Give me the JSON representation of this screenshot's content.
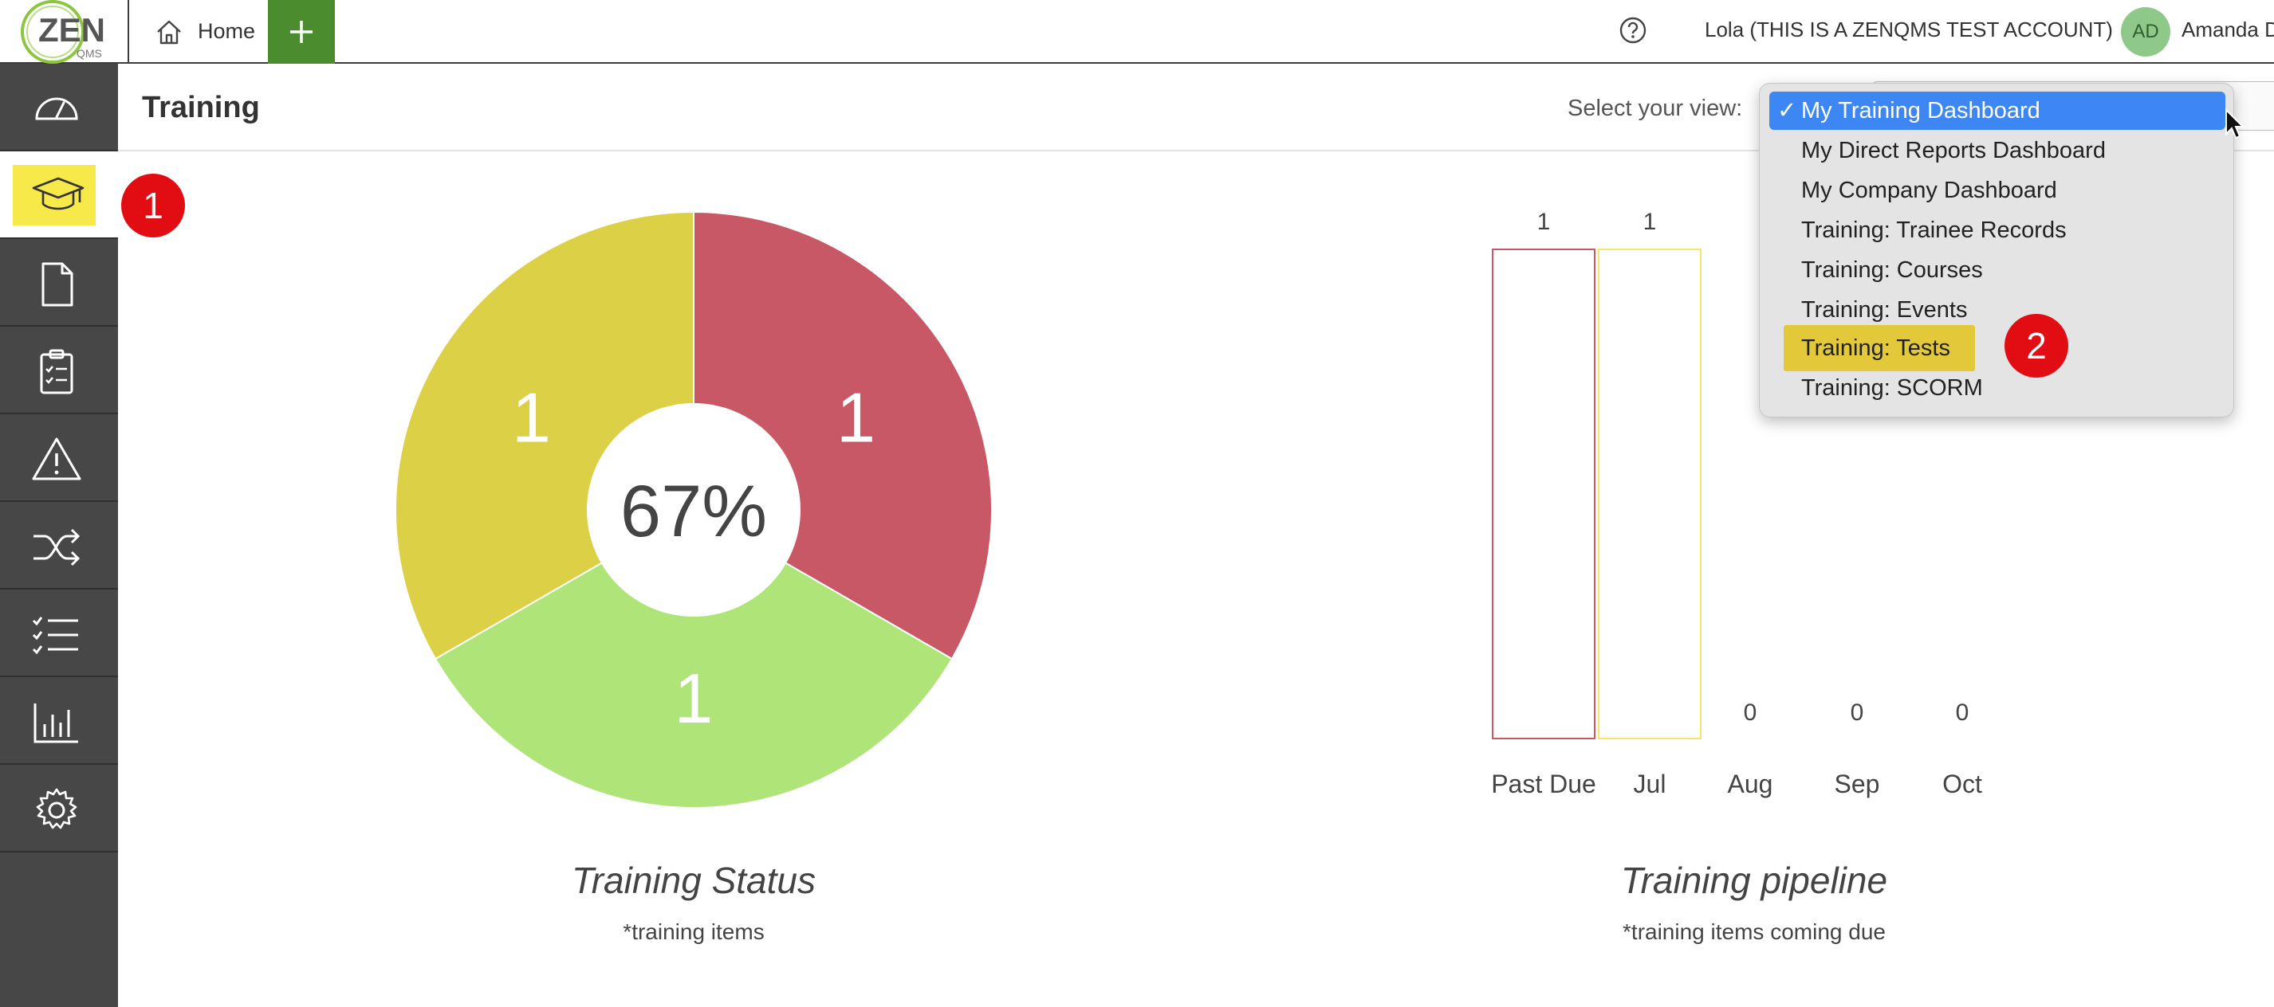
{
  "colors": {
    "sidebar_bg": "#474747",
    "accent_green": "#4a8c2e",
    "highlight_yellow": "#f7e94a",
    "badge_red": "#e20d12",
    "select_blue": "#3d87f5",
    "status_red": "#c95866",
    "status_yellow": "#dcd046",
    "status_green": "#afe478"
  },
  "header": {
    "logo_text": "ZEN",
    "logo_subtext": "QMS",
    "home_tab": "Home",
    "add_tab_icon": "plus-icon",
    "help_icon": "help-icon",
    "account": "Lola (THIS IS A ZENQMS TEST ACCOUNT)",
    "avatar_initials": "AD",
    "user_name": "Amanda D"
  },
  "sidebar": {
    "items": [
      {
        "icon": "dashboard-gauge-icon"
      },
      {
        "icon": "graduation-cap-icon",
        "active": true
      },
      {
        "icon": "document-icon"
      },
      {
        "icon": "clipboard-checklist-icon"
      },
      {
        "icon": "warning-icon"
      },
      {
        "icon": "shuffle-icon"
      },
      {
        "icon": "checklist-icon"
      },
      {
        "icon": "bar-chart-icon"
      },
      {
        "icon": "gear-icon"
      }
    ],
    "badge": "1"
  },
  "page": {
    "title": "Training",
    "view_label": "Select your view:"
  },
  "dropdown": {
    "options": [
      "My Training Dashboard",
      "My Direct Reports Dashboard",
      "My Company Dashboard",
      "Training: Trainee Records",
      "Training: Courses",
      "Training: Events",
      "Training: Tests",
      "Training: SCORM"
    ],
    "selected": "My Training Dashboard",
    "check_mark": "✓",
    "badge": "2"
  },
  "chart_data": [
    {
      "type": "pie",
      "title": "Training Status",
      "subtitle": "*training items",
      "center_label": "67%",
      "slices": [
        {
          "value": 1,
          "color": "#c95866"
        },
        {
          "value": 1,
          "color": "#afe478"
        },
        {
          "value": 1,
          "color": "#dcd046"
        }
      ]
    },
    {
      "type": "bar",
      "title": "Training pipeline",
      "subtitle": "*training items coming due",
      "categories": [
        "Past Due",
        "Jul",
        "Aug",
        "Sep",
        "Oct"
      ],
      "values": [
        1,
        1,
        0,
        0,
        0
      ],
      "bar_colors": [
        "#c95866",
        "#f4e66a",
        "#dcd046",
        "#dcd046",
        "#dcd046"
      ],
      "ylim": [
        0,
        1
      ]
    }
  ]
}
